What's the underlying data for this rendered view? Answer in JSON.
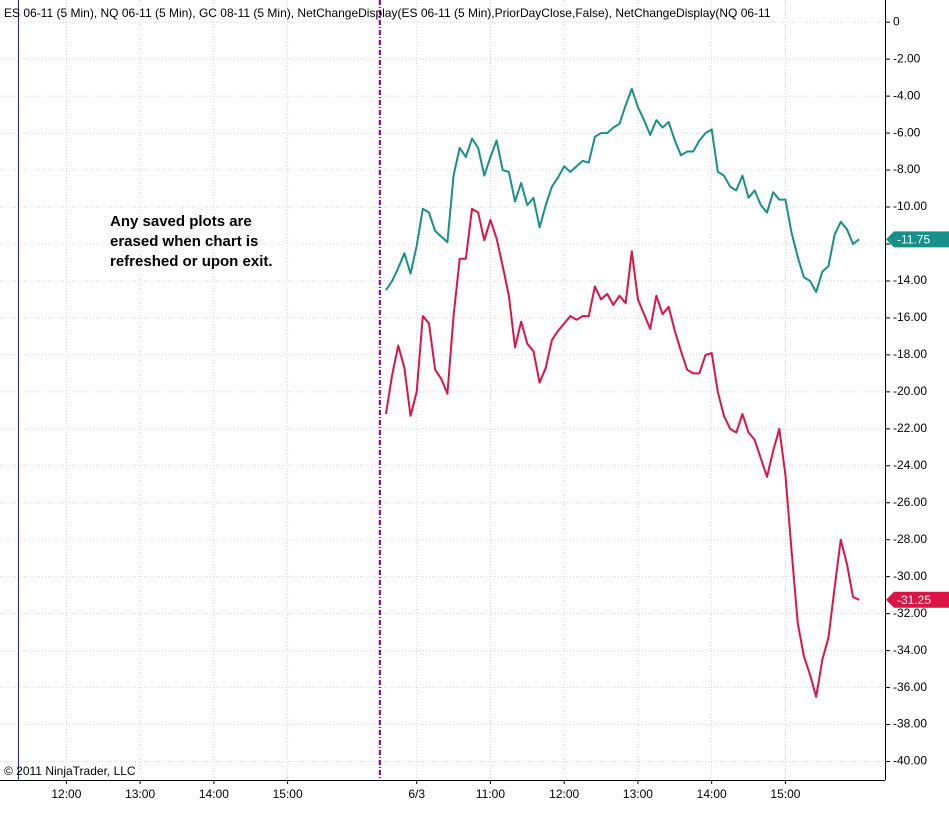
{
  "chart_data": {
    "type": "line",
    "title": "ES 06-11 (5 Min),  NQ 06-11 (5 Min),  GC 08-11 (5 Min),  NetChangeDisplay(ES 06-11 (5 Min),PriorDayClose,False),  NetChangeDisplay(NQ 06-11",
    "annotation": [
      "Any saved plots are",
      "erased when chart is",
      "refreshed or upon exit."
    ],
    "copyright": "© 2011 NinjaTrader, LLC",
    "xlim": [
      11.1,
      23.1
    ],
    "xticks": [
      {
        "value": 12,
        "label": "12:00"
      },
      {
        "value": 13,
        "label": "13:00"
      },
      {
        "value": 14,
        "label": "14:00"
      },
      {
        "value": 15,
        "label": "15:00"
      },
      {
        "value": 16.75,
        "label": "6/3"
      },
      {
        "value": 17.75,
        "label": "11:00"
      },
      {
        "value": 18.75,
        "label": "12:00"
      },
      {
        "value": 19.75,
        "label": "13:00"
      },
      {
        "value": 20.75,
        "label": "14:00"
      },
      {
        "value": 21.75,
        "label": "15:00"
      }
    ],
    "ylim": [
      1.2,
      -41.0
    ],
    "yticks": [
      0,
      {
        "value": -2,
        "label": "-2.00"
      },
      {
        "value": -4,
        "label": "-4.00"
      },
      {
        "value": -6,
        "label": "-6.00"
      },
      {
        "value": -8,
        "label": "-8.00"
      },
      {
        "value": -10,
        "label": "-10.00"
      },
      {
        "value": -12,
        "label": "-12.00"
      },
      {
        "value": -14,
        "label": "-14.00"
      },
      {
        "value": -16,
        "label": "-16.00"
      },
      {
        "value": -18,
        "label": "-18.00"
      },
      {
        "value": -20,
        "label": "-20.00"
      },
      {
        "value": -22,
        "label": "-22.00"
      },
      {
        "value": -24,
        "label": "-24.00"
      },
      {
        "value": -26,
        "label": "-26.00"
      },
      {
        "value": -28,
        "label": "-28.00"
      },
      {
        "value": -30,
        "label": "-30.00"
      },
      {
        "value": -32,
        "label": "-32.00"
      },
      {
        "value": -34,
        "label": "-34.00"
      },
      {
        "value": -36,
        "label": "-36.00"
      },
      {
        "value": -38,
        "label": "-38.00"
      },
      {
        "value": -40,
        "label": "-40.00"
      }
    ],
    "grid": true,
    "vlines": [
      {
        "x": 11.35,
        "color": "#1a1aa0",
        "dashed": false
      },
      {
        "x": 16.25,
        "color": "#800080",
        "dashed": true
      }
    ],
    "x": [
      16.3333,
      16.4167,
      16.5,
      16.5833,
      16.6667,
      16.75,
      16.8333,
      16.9167,
      17,
      17.0833,
      17.1667,
      17.25,
      17.3333,
      17.4167,
      17.5,
      17.5833,
      17.6667,
      17.75,
      17.8333,
      17.9167,
      18,
      18.0833,
      18.1667,
      18.25,
      18.3333,
      18.4167,
      18.5,
      18.5833,
      18.6667,
      18.75,
      18.8333,
      18.9167,
      19,
      19.0833,
      19.1667,
      19.25,
      19.3333,
      19.4167,
      19.5,
      19.5833,
      19.6667,
      19.75,
      19.8333,
      19.9167,
      20,
      20.0833,
      20.1667,
      20.25,
      20.3333,
      20.4167,
      20.5,
      20.5833,
      20.6667,
      20.75,
      20.8333,
      20.9167,
      21,
      21.0833,
      21.1667,
      21.25,
      21.3333,
      21.4167,
      21.5,
      21.5833,
      21.6667,
      21.75,
      21.8333,
      21.9167,
      22,
      22.0833,
      22.1667,
      22.25,
      22.3333,
      22.4167,
      22.5,
      22.5833,
      22.6667,
      22.75
    ],
    "series": [
      {
        "color": "#16908a",
        "end_label": "-11.75",
        "values": [
          -14.5,
          -14.0,
          -13.3,
          -12.5,
          -13.6,
          -12.1,
          -10.1,
          -10.3,
          -11.3,
          -11.6,
          -11.9,
          -8.3,
          -6.8,
          -7.3,
          -6.3,
          -6.8,
          -8.3,
          -7.3,
          -6.4,
          -8.0,
          -8.1,
          -9.7,
          -8.7,
          -9.9,
          -9.5,
          -11.1,
          -9.9,
          -8.9,
          -8.4,
          -7.8,
          -8.1,
          -7.8,
          -7.5,
          -7.6,
          -6.2,
          -6.0,
          -6.0,
          -5.7,
          -5.5,
          -4.5,
          -3.6,
          -4.6,
          -5.3,
          -6.1,
          -5.3,
          -5.7,
          -5.4,
          -6.4,
          -7.2,
          -7.0,
          -7.0,
          -6.4,
          -6.0,
          -5.8,
          -8.1,
          -8.3,
          -8.9,
          -9.1,
          -8.3,
          -9.5,
          -9.1,
          -9.9,
          -10.3,
          -9.2,
          -9.6,
          -9.6,
          -11.4,
          -12.7,
          -13.8,
          -14.0,
          -14.6,
          -13.5,
          -13.2,
          -11.5,
          -10.8,
          -11.2,
          -12.0,
          -11.75
        ]
      },
      {
        "color": "#dc1446",
        "end_label": "-31.25",
        "values": [
          -21.2,
          -19.1,
          -17.5,
          -18.7,
          -21.3,
          -20.0,
          -15.9,
          -16.3,
          -18.8,
          -19.3,
          -20.1,
          -15.9,
          -12.8,
          -12.8,
          -10.1,
          -10.3,
          -11.8,
          -10.7,
          -11.7,
          -13.2,
          -14.8,
          -17.6,
          -16.2,
          -17.4,
          -17.8,
          -19.5,
          -18.7,
          -17.2,
          -16.7,
          -16.3,
          -15.9,
          -16.1,
          -15.9,
          -15.9,
          -14.3,
          -15.0,
          -14.7,
          -15.3,
          -14.8,
          -15.2,
          -12.4,
          -15.0,
          -15.8,
          -16.6,
          -14.8,
          -15.8,
          -15.4,
          -16.7,
          -17.8,
          -18.8,
          -19.0,
          -19.0,
          -18.0,
          -17.9,
          -20.0,
          -21.3,
          -22.0,
          -22.2,
          -21.2,
          -22.2,
          -22.6,
          -23.6,
          -24.6,
          -23.2,
          -22.0,
          -24.5,
          -28.6,
          -32.5,
          -34.3,
          -35.3,
          -36.5,
          -34.5,
          -33.3,
          -30.6,
          -28.0,
          -29.3,
          -31.1,
          -31.25
        ]
      }
    ]
  }
}
